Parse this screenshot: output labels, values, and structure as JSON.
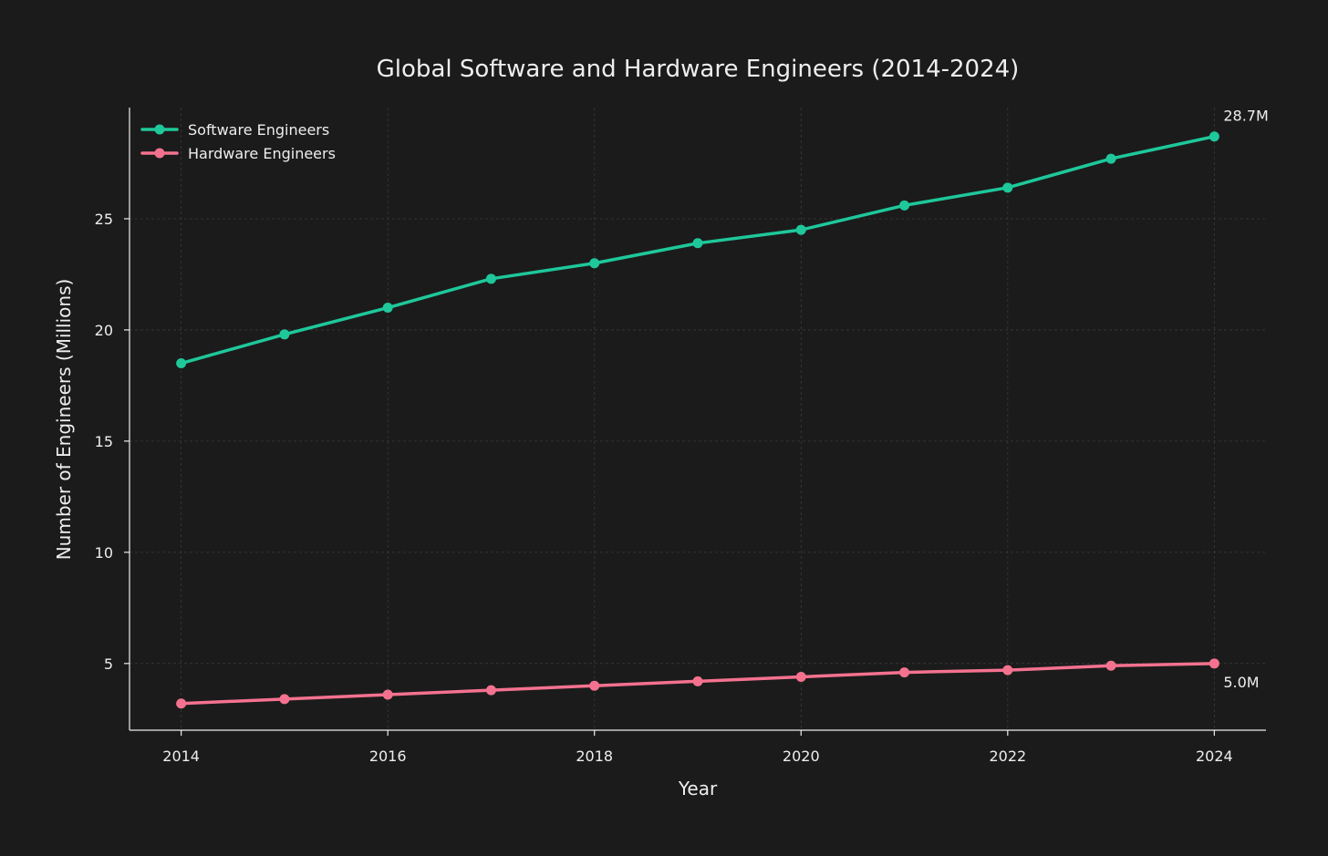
{
  "chart_data": {
    "type": "line",
    "title": "Global Software and Hardware Engineers (2014-2024)",
    "xlabel": "Year",
    "ylabel": "Number of Engineers (Millions)",
    "x": [
      2014,
      2015,
      2016,
      2017,
      2018,
      2019,
      2020,
      2021,
      2022,
      2023,
      2024
    ],
    "xlim": [
      2013.5,
      2024.5
    ],
    "ylim": [
      2.0,
      30.0
    ],
    "xticks": [
      2014,
      2016,
      2018,
      2020,
      2022,
      2024
    ],
    "yticks": [
      5,
      10,
      15,
      20,
      25
    ],
    "grid": true,
    "legend_position": "top-left",
    "series": [
      {
        "name": "Software Engineers",
        "color": "#1ec89a",
        "values": [
          18.5,
          19.8,
          21.0,
          22.3,
          23.0,
          23.9,
          24.5,
          25.6,
          26.4,
          27.7,
          28.7
        ]
      },
      {
        "name": "Hardware Engineers",
        "color": "#f4728f",
        "values": [
          3.2,
          3.4,
          3.6,
          3.8,
          4.0,
          4.2,
          4.4,
          4.6,
          4.7,
          4.9,
          5.0
        ]
      }
    ],
    "annotations": [
      {
        "text": "28.7M",
        "series": 0,
        "x": 2024,
        "y": 28.7,
        "placement": "above-right"
      },
      {
        "text": "5.0M",
        "series": 1,
        "x": 2024,
        "y": 5.0,
        "placement": "below-right"
      }
    ]
  }
}
